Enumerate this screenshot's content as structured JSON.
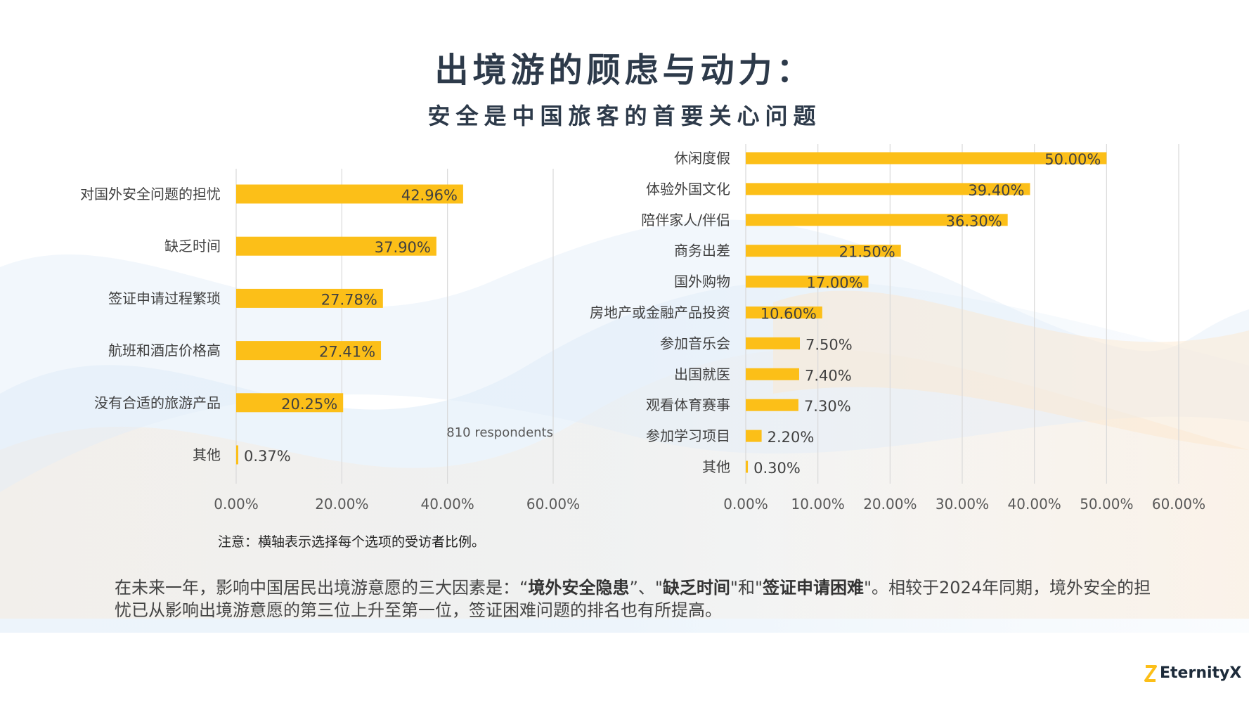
{
  "title": "出境游的顾虑与动力：",
  "subtitle": "安全是中国旅客的首要关心问题",
  "colors": {
    "bar": "#fcbf18",
    "title": "#2d3a4a",
    "grid": "#d9d9d9"
  },
  "chart_data": [
    {
      "type": "bar",
      "orientation": "horizontal",
      "categories": [
        "对国外安全问题的担忧",
        "缺乏时间",
        "签证申请过程繁琐",
        "航班和酒店价格高",
        "没有合适的旅游产品",
        "其他"
      ],
      "values": [
        42.96,
        37.9,
        27.78,
        27.41,
        20.25,
        0.37
      ],
      "data_labels": [
        "42.96%",
        "37.90%",
        "27.78%",
        "27.41%",
        "20.25%",
        "0.37%"
      ],
      "xlim": [
        0,
        60
      ],
      "ticks": [
        "0.00%",
        "20.00%",
        "40.00%",
        "60.00%"
      ],
      "annotation": "810 respondents",
      "grid": true
    },
    {
      "type": "bar",
      "orientation": "horizontal",
      "categories": [
        "休闲度假",
        "体验外国文化",
        "陪伴家人/伴侣",
        "商务出差",
        "国外购物",
        "房地产或金融产品投资",
        "参加音乐会",
        "出国就医",
        "观看体育赛事",
        "参加学习项目",
        "其他"
      ],
      "values": [
        50.0,
        39.4,
        36.3,
        21.5,
        17.0,
        10.6,
        7.5,
        7.4,
        7.3,
        2.2,
        0.3
      ],
      "data_labels": [
        "50.00%",
        "39.40%",
        "36.30%",
        "21.50%",
        "17.00%",
        "10.60%",
        "7.50%",
        "7.40%",
        "7.30%",
        "2.20%",
        "0.30%"
      ],
      "xlim": [
        0,
        60
      ],
      "ticks": [
        "0.00%",
        "10.00%",
        "20.00%",
        "30.00%",
        "40.00%",
        "50.00%",
        "60.00%"
      ],
      "grid": true
    }
  ],
  "note": "注意：横轴表示选择每个选项的受访者比例。",
  "summary": {
    "p1": "在未来一年，影响中国居民出境游意愿的三大因素是：“",
    "b1": "境外安全隐患",
    "p2": "”、\"",
    "b2": "缺乏时间",
    "p3": "\"和\"",
    "b3": "签证申请困难",
    "p4": "\"。相较于2024年同期，境外安全的担忧已从影响出境游意愿的第三位上升至第一位，签证困难问题的排名也有所提高。"
  },
  "logo": {
    "text": "EternityX"
  }
}
